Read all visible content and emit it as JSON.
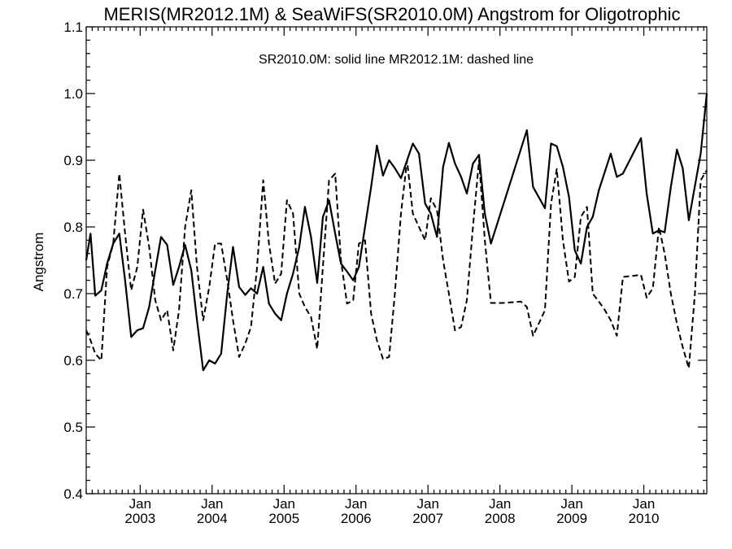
{
  "chart_data": {
    "type": "line",
    "title": "MERIS(MR2012.1M) & SeaWiFS(SR2010.0M)  Angstrom for Oligotrophic",
    "annotation": "SR2010.0M: solid line   MR2012.1M: dashed line",
    "ylabel": "Angstrom",
    "xlabel": "",
    "ylim": [
      0.4,
      1.1
    ],
    "xlim": [
      2002.25,
      2010.875
    ],
    "yticks": [
      "0.4",
      "0.5",
      "0.6",
      "0.7",
      "0.8",
      "0.9",
      "1.0",
      "1.1"
    ],
    "xticks": [
      {
        "top": "Jan",
        "bottom": "2003",
        "x": 2003.0
      },
      {
        "top": "Jan",
        "bottom": "2004",
        "x": 2004.0
      },
      {
        "top": "Jan",
        "bottom": "2005",
        "x": 2005.0
      },
      {
        "top": "Jan",
        "bottom": "2006",
        "x": 2006.0
      },
      {
        "top": "Jan",
        "bottom": "2007",
        "x": 2007.0
      },
      {
        "top": "Jan",
        "bottom": "2008",
        "x": 2008.0
      },
      {
        "top": "Jan",
        "bottom": "2009",
        "x": 2009.0
      },
      {
        "top": "Jan",
        "bottom": "2010",
        "x": 2010.0
      }
    ],
    "series": [
      {
        "style": "solid",
        "points": [
          [
            2002.25,
            0.75
          ],
          [
            2002.31,
            0.79
          ],
          [
            2002.375,
            0.697
          ],
          [
            2002.46,
            0.705
          ],
          [
            2002.54,
            0.745
          ],
          [
            2002.625,
            0.775
          ],
          [
            2002.71,
            0.79
          ],
          [
            2002.79,
            0.72
          ],
          [
            2002.875,
            0.635
          ],
          [
            2002.96,
            0.645
          ],
          [
            2003.04,
            0.648
          ],
          [
            2003.125,
            0.68
          ],
          [
            2003.21,
            0.735
          ],
          [
            2003.29,
            0.785
          ],
          [
            2003.375,
            0.773
          ],
          [
            2003.46,
            0.713
          ],
          [
            2003.54,
            0.74
          ],
          [
            2003.625,
            0.773
          ],
          [
            2003.71,
            0.735
          ],
          [
            2003.79,
            0.66
          ],
          [
            2003.875,
            0.585
          ],
          [
            2003.96,
            0.6
          ],
          [
            2004.04,
            0.595
          ],
          [
            2004.125,
            0.61
          ],
          [
            2004.21,
            0.7
          ],
          [
            2004.29,
            0.77
          ],
          [
            2004.375,
            0.71
          ],
          [
            2004.46,
            0.698
          ],
          [
            2004.54,
            0.708
          ],
          [
            2004.625,
            0.7
          ],
          [
            2004.71,
            0.74
          ],
          [
            2004.79,
            0.685
          ],
          [
            2004.875,
            0.67
          ],
          [
            2004.96,
            0.66
          ],
          [
            2005.04,
            0.7
          ],
          [
            2005.125,
            0.73
          ],
          [
            2005.21,
            0.77
          ],
          [
            2005.29,
            0.83
          ],
          [
            2005.375,
            0.785
          ],
          [
            2005.46,
            0.716
          ],
          [
            2005.54,
            0.815
          ],
          [
            2005.625,
            0.84
          ],
          [
            2005.71,
            0.79
          ],
          [
            2005.79,
            0.745
          ],
          [
            2005.875,
            0.733
          ],
          [
            2005.96,
            0.72
          ],
          [
            2006.04,
            0.74
          ],
          [
            2006.125,
            0.8
          ],
          [
            2006.21,
            0.86
          ],
          [
            2006.29,
            0.922
          ],
          [
            2006.375,
            0.877
          ],
          [
            2006.46,
            0.9
          ],
          [
            2006.54,
            0.888
          ],
          [
            2006.625,
            0.873
          ],
          [
            2006.71,
            0.9
          ],
          [
            2006.79,
            0.925
          ],
          [
            2006.875,
            0.91
          ],
          [
            2006.96,
            0.835
          ],
          [
            2007.04,
            0.82
          ],
          [
            2007.125,
            0.785
          ],
          [
            2007.21,
            0.89
          ],
          [
            2007.29,
            0.926
          ],
          [
            2007.375,
            0.895
          ],
          [
            2007.46,
            0.875
          ],
          [
            2007.54,
            0.85
          ],
          [
            2007.625,
            0.895
          ],
          [
            2007.71,
            0.908
          ],
          [
            2007.79,
            0.82
          ],
          [
            2007.875,
            0.775
          ],
          [
            2008.375,
            0.945
          ],
          [
            2008.46,
            0.86
          ],
          [
            2008.625,
            0.828
          ],
          [
            2008.71,
            0.925
          ],
          [
            2008.79,
            0.921
          ],
          [
            2008.875,
            0.89
          ],
          [
            2008.96,
            0.845
          ],
          [
            2009.04,
            0.765
          ],
          [
            2009.125,
            0.745
          ],
          [
            2009.21,
            0.8
          ],
          [
            2009.29,
            0.815
          ],
          [
            2009.375,
            0.855
          ],
          [
            2009.54,
            0.91
          ],
          [
            2009.625,
            0.875
          ],
          [
            2009.71,
            0.88
          ],
          [
            2009.96,
            0.933
          ],
          [
            2010.04,
            0.85
          ],
          [
            2010.125,
            0.79
          ],
          [
            2010.21,
            0.795
          ],
          [
            2010.29,
            0.792
          ],
          [
            2010.375,
            0.86
          ],
          [
            2010.46,
            0.916
          ],
          [
            2010.54,
            0.888
          ],
          [
            2010.625,
            0.81
          ],
          [
            2010.79,
            0.91
          ],
          [
            2010.875,
            1.0
          ]
        ]
      },
      {
        "style": "dashed",
        "points": [
          [
            2002.25,
            0.645
          ],
          [
            2002.31,
            0.63
          ],
          [
            2002.375,
            0.61
          ],
          [
            2002.46,
            0.6
          ],
          [
            2002.54,
            0.74
          ],
          [
            2002.625,
            0.775
          ],
          [
            2002.71,
            0.88
          ],
          [
            2002.79,
            0.79
          ],
          [
            2002.875,
            0.705
          ],
          [
            2002.96,
            0.74
          ],
          [
            2003.04,
            0.826
          ],
          [
            2003.125,
            0.77
          ],
          [
            2003.21,
            0.69
          ],
          [
            2003.29,
            0.66
          ],
          [
            2003.375,
            0.675
          ],
          [
            2003.46,
            0.615
          ],
          [
            2003.54,
            0.675
          ],
          [
            2003.625,
            0.8
          ],
          [
            2003.71,
            0.855
          ],
          [
            2003.79,
            0.74
          ],
          [
            2003.875,
            0.66
          ],
          [
            2003.96,
            0.71
          ],
          [
            2004.04,
            0.775
          ],
          [
            2004.125,
            0.775
          ],
          [
            2004.21,
            0.72
          ],
          [
            2004.29,
            0.66
          ],
          [
            2004.375,
            0.605
          ],
          [
            2004.46,
            0.625
          ],
          [
            2004.54,
            0.65
          ],
          [
            2004.625,
            0.74
          ],
          [
            2004.71,
            0.87
          ],
          [
            2004.79,
            0.775
          ],
          [
            2004.875,
            0.715
          ],
          [
            2004.96,
            0.73
          ],
          [
            2005.04,
            0.84
          ],
          [
            2005.125,
            0.82
          ],
          [
            2005.21,
            0.7
          ],
          [
            2005.29,
            0.68
          ],
          [
            2005.375,
            0.665
          ],
          [
            2005.46,
            0.617
          ],
          [
            2005.54,
            0.74
          ],
          [
            2005.625,
            0.87
          ],
          [
            2005.71,
            0.88
          ],
          [
            2005.79,
            0.75
          ],
          [
            2005.875,
            0.685
          ],
          [
            2005.96,
            0.69
          ],
          [
            2006.04,
            0.775
          ],
          [
            2006.125,
            0.78
          ],
          [
            2006.21,
            0.67
          ],
          [
            2006.29,
            0.63
          ],
          [
            2006.375,
            0.602
          ],
          [
            2006.46,
            0.605
          ],
          [
            2006.54,
            0.7
          ],
          [
            2006.625,
            0.82
          ],
          [
            2006.71,
            0.9
          ],
          [
            2006.79,
            0.82
          ],
          [
            2006.875,
            0.8
          ],
          [
            2006.96,
            0.78
          ],
          [
            2007.04,
            0.843
          ],
          [
            2007.125,
            0.825
          ],
          [
            2007.21,
            0.75
          ],
          [
            2007.29,
            0.7
          ],
          [
            2007.375,
            0.645
          ],
          [
            2007.46,
            0.65
          ],
          [
            2007.54,
            0.69
          ],
          [
            2007.625,
            0.8
          ],
          [
            2007.71,
            0.9
          ],
          [
            2007.79,
            0.78
          ],
          [
            2007.875,
            0.686
          ],
          [
            2008.04,
            0.686
          ],
          [
            2008.29,
            0.688
          ],
          [
            2008.375,
            0.68
          ],
          [
            2008.46,
            0.637
          ],
          [
            2008.54,
            0.655
          ],
          [
            2008.625,
            0.675
          ],
          [
            2008.71,
            0.835
          ],
          [
            2008.79,
            0.887
          ],
          [
            2008.875,
            0.78
          ],
          [
            2008.96,
            0.718
          ],
          [
            2009.04,
            0.725
          ],
          [
            2009.125,
            0.815
          ],
          [
            2009.21,
            0.83
          ],
          [
            2009.29,
            0.7
          ],
          [
            2009.375,
            0.688
          ],
          [
            2009.46,
            0.675
          ],
          [
            2009.54,
            0.66
          ],
          [
            2009.625,
            0.637
          ],
          [
            2009.71,
            0.725
          ],
          [
            2009.96,
            0.728
          ],
          [
            2010.04,
            0.694
          ],
          [
            2010.125,
            0.708
          ],
          [
            2010.21,
            0.8
          ],
          [
            2010.29,
            0.76
          ],
          [
            2010.375,
            0.7
          ],
          [
            2010.46,
            0.655
          ],
          [
            2010.54,
            0.62
          ],
          [
            2010.625,
            0.588
          ],
          [
            2010.71,
            0.7
          ],
          [
            2010.79,
            0.87
          ],
          [
            2010.875,
            0.885
          ]
        ]
      }
    ]
  }
}
